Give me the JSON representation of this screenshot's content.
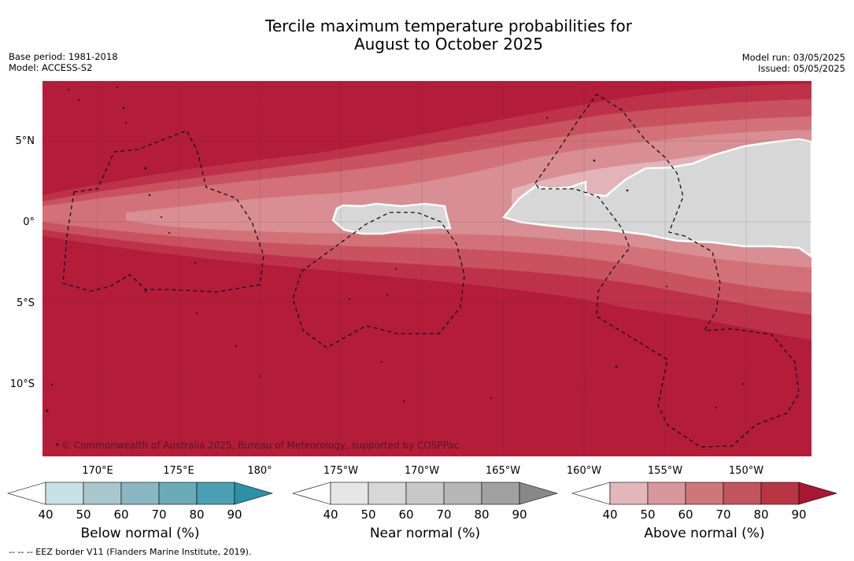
{
  "title_line1": "Tercile maximum temperature probabilities for",
  "title_line2": "August to October 2025",
  "meta_left": [
    "Base period: 1981-2018",
    "Model: ACCESS-S2"
  ],
  "meta_right": [
    "Model run: 03/05/2025",
    "Issued: 05/05/2025"
  ],
  "map": {
    "lat_labels": [
      "5°N",
      "0°",
      "5°S",
      "10°S"
    ],
    "lon_labels": [
      "170°E",
      "175°E",
      "180°",
      "175°W",
      "170°W",
      "165°W",
      "160°W",
      "155°W",
      "150°W"
    ],
    "copyright": "© Commonwealth of Australia 2025, Bureau of Meteorology, supported by COSPPac",
    "colors": {
      "background": "#b31d39",
      "band_80": "#bd3249",
      "band_70": "#c9525f",
      "band_60": "#d27278",
      "band_50": "#d88e92",
      "band_40": "#e3b4b7",
      "near_normal": "#d7d7d7"
    }
  },
  "colorbars": [
    {
      "name": "Below normal (%)",
      "ticks": [
        "40",
        "50",
        "60",
        "70",
        "80",
        "90"
      ],
      "colors": [
        "#ffffff",
        "#c9e0e6",
        "#a8c7cd",
        "#8ab7c1",
        "#6aabb8",
        "#4aa0b0",
        "#2b91a4"
      ]
    },
    {
      "name": "Near normal (%)",
      "ticks": [
        "40",
        "50",
        "60",
        "70",
        "80",
        "90"
      ],
      "colors": [
        "#ffffff",
        "#e6e6e6",
        "#d7d7d7",
        "#c8c8c8",
        "#b6b6b6",
        "#a1a1a1",
        "#888888"
      ]
    },
    {
      "name": "Above normal (%)",
      "ticks": [
        "40",
        "50",
        "60",
        "70",
        "80",
        "90"
      ],
      "colors": [
        "#ffffff",
        "#e3b6bb",
        "#d8979c",
        "#cd767c",
        "#c2555f",
        "#b83644",
        "#a81633"
      ]
    }
  ],
  "footnote": "--  --  -- EEZ border V11 (Flanders Marine Institute, 2019)."
}
